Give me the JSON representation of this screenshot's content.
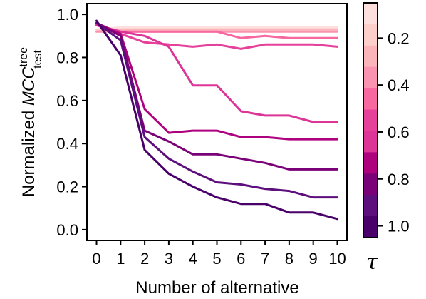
{
  "chart_data": {
    "type": "line",
    "xlabel": "Number of alternative",
    "ylabel": {
      "prefix": "Normalized ",
      "main": "MCC",
      "sup": "tree",
      "sub": "test"
    },
    "x": [
      0,
      1,
      2,
      3,
      4,
      5,
      6,
      7,
      8,
      9,
      10
    ],
    "xticks": [
      "0",
      "1",
      "2",
      "3",
      "4",
      "5",
      "6",
      "7",
      "8",
      "9",
      "10"
    ],
    "ylim": [
      -0.05,
      1.05
    ],
    "yticks": [
      "0.0",
      "0.2",
      "0.4",
      "0.6",
      "0.8",
      "1.0"
    ],
    "series": [
      {
        "tau": 0.05,
        "color": "#fde0dd",
        "values": [
          0.93,
          0.94,
          0.94,
          0.94,
          0.94,
          0.94,
          0.94,
          0.94,
          0.94,
          0.94,
          0.94
        ]
      },
      {
        "tau": 0.1,
        "color": "#fccfcb",
        "values": [
          0.93,
          0.93,
          0.93,
          0.93,
          0.93,
          0.93,
          0.93,
          0.93,
          0.93,
          0.93,
          0.93
        ]
      },
      {
        "tau": 0.2,
        "color": "#fbb4b9",
        "values": [
          0.92,
          0.93,
          0.93,
          0.93,
          0.93,
          0.93,
          0.93,
          0.93,
          0.93,
          0.93,
          0.93
        ]
      },
      {
        "tau": 0.3,
        "color": "#f993b0",
        "values": [
          0.92,
          0.92,
          0.92,
          0.92,
          0.92,
          0.92,
          0.92,
          0.92,
          0.92,
          0.92,
          0.92
        ]
      },
      {
        "tau": 0.4,
        "color": "#f768a1",
        "values": [
          0.95,
          0.92,
          0.92,
          0.92,
          0.92,
          0.92,
          0.89,
          0.9,
          0.89,
          0.89,
          0.89
        ]
      },
      {
        "tau": 0.5,
        "color": "#e5409a",
        "values": [
          0.95,
          0.91,
          0.87,
          0.86,
          0.85,
          0.86,
          0.84,
          0.86,
          0.86,
          0.86,
          0.85
        ]
      },
      {
        "tau": 0.6,
        "color": "#dd3497",
        "values": [
          0.95,
          0.92,
          0.9,
          0.85,
          0.67,
          0.67,
          0.55,
          0.53,
          0.53,
          0.5,
          0.5
        ]
      },
      {
        "tau": 0.7,
        "color": "#ae017e",
        "values": [
          0.96,
          0.91,
          0.56,
          0.45,
          0.46,
          0.46,
          0.43,
          0.43,
          0.42,
          0.42,
          0.42
        ]
      },
      {
        "tau": 0.8,
        "color": "#7a0177",
        "values": [
          0.96,
          0.9,
          0.46,
          0.41,
          0.35,
          0.35,
          0.33,
          0.31,
          0.28,
          0.28,
          0.28
        ]
      },
      {
        "tau": 0.9,
        "color": "#5e0f7e",
        "values": [
          0.96,
          0.88,
          0.43,
          0.33,
          0.27,
          0.22,
          0.21,
          0.19,
          0.18,
          0.15,
          0.15
        ]
      },
      {
        "tau": 1.0,
        "color": "#49006a",
        "values": [
          0.97,
          0.81,
          0.37,
          0.26,
          0.2,
          0.15,
          0.12,
          0.12,
          0.08,
          0.08,
          0.05
        ]
      }
    ],
    "colorbar": {
      "label": "τ",
      "range": [
        0.05,
        1.05
      ],
      "ticks": [
        "0.2",
        "0.4",
        "0.6",
        "0.8",
        "1.0"
      ],
      "bins": [
        "#fde0dd",
        "#fccfcb",
        "#fbb4b9",
        "#f993b0",
        "#f768a1",
        "#e5409a",
        "#dd3497",
        "#ae017e",
        "#7a0177",
        "#5e0f7e",
        "#49006a"
      ]
    },
    "grid": false,
    "legend": "colorbar-right"
  }
}
